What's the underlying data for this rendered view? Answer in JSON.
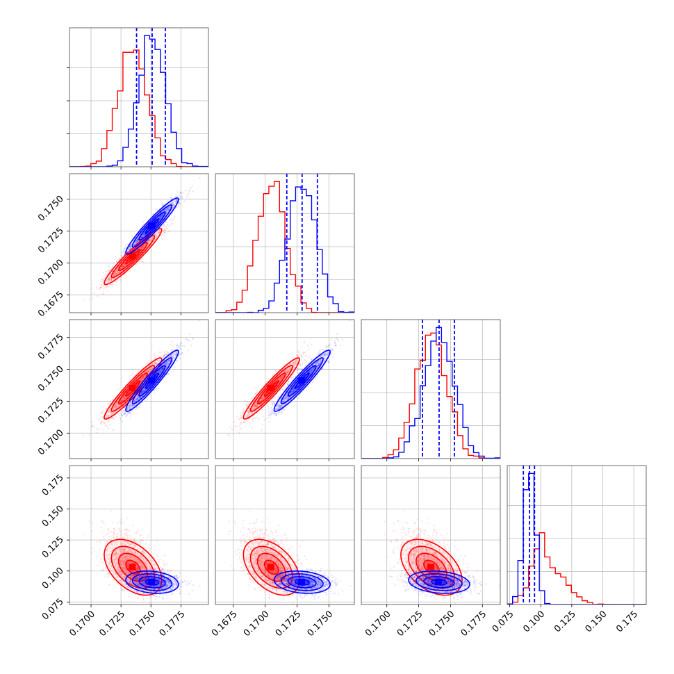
{
  "figure": {
    "type": "corner_plot",
    "grid_on": true,
    "colors": {
      "red": "#ff0000",
      "blue": "#0000ff",
      "grid": "#bdbdbd"
    }
  },
  "axes": {
    "p0": {
      "lim": [
        0.1682,
        0.1798
      ],
      "ticks": [
        0.17,
        0.1725,
        0.175,
        0.1775
      ],
      "labels": [
        "0.1700",
        "0.1725",
        "0.1750",
        "0.1775"
      ]
    },
    "p1": {
      "lim": [
        0.1661,
        0.177
      ],
      "ticks": [
        0.1675,
        0.17,
        0.1725,
        0.175
      ],
      "labels": [
        "0.1675",
        "0.1700",
        "0.1725",
        "0.1750"
      ]
    },
    "p2": {
      "lim": [
        0.168,
        0.1789
      ],
      "ticks": [
        0.17,
        0.1725,
        0.175,
        0.1775
      ],
      "labels": [
        "0.1700",
        "0.1725",
        "0.1750",
        "0.1775"
      ]
    },
    "p3": {
      "lim": [
        0.073,
        0.185
      ],
      "ticks": [
        0.075,
        0.1,
        0.125,
        0.15,
        0.175
      ],
      "labels": [
        "0.075",
        "0.100",
        "0.125",
        "0.150",
        "0.175"
      ]
    }
  },
  "chart_data": {
    "type": "scatter",
    "series": [
      {
        "color": "#ff0000",
        "means": [
          0.1735,
          0.1705,
          0.1735,
          0.103
        ],
        "stds": [
          0.0012,
          0.0011,
          0.0012,
          0.009
        ],
        "correlations": {
          "0-1": 0.95,
          "0-2": 0.95,
          "1-2": 0.95,
          "0-3": -0.45,
          "1-3": -0.45,
          "2-3": -0.45
        },
        "hist_peak_estimates": {
          "p3": 0.1
        }
      },
      {
        "color": "#0000ff",
        "means": [
          0.1751,
          0.1729,
          0.1741,
          0.091
        ],
        "stds": [
          0.0011,
          0.0011,
          0.0012,
          0.0045
        ],
        "correlations": {
          "0-1": 0.95,
          "0-2": 0.95,
          "1-2": 0.95,
          "0-3": -0.2,
          "1-3": -0.2,
          "2-3": -0.2
        },
        "quantiles": {
          "p0": [
            0.1738,
            0.1751,
            0.1762
          ],
          "p1": [
            0.1717,
            0.1729,
            0.1741
          ],
          "p2": [
            0.1728,
            0.1741,
            0.1753
          ],
          "p3": [
            0.086,
            0.091,
            0.095
          ]
        }
      }
    ]
  }
}
